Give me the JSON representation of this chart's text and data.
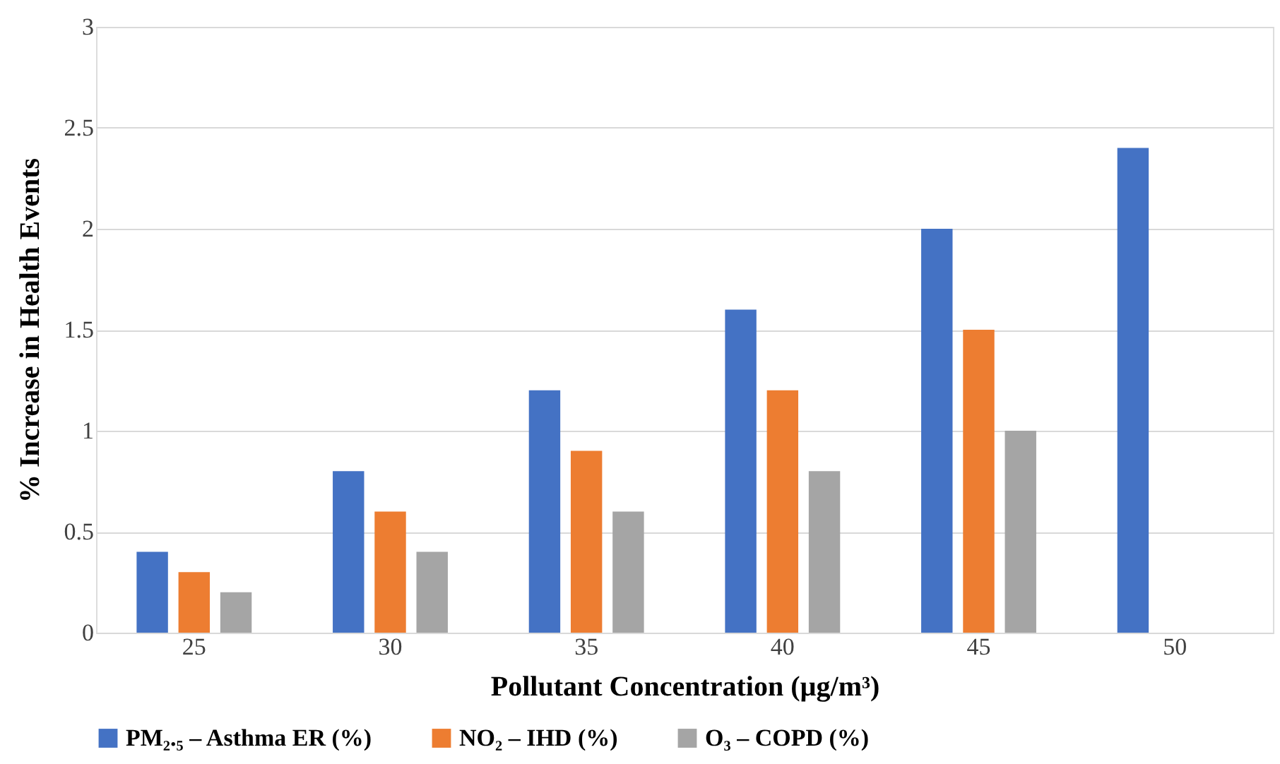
{
  "chart_data": {
    "type": "bar",
    "xlabel": "Pollutant Concentration (µg/m³)",
    "ylabel": "% Increase in Health Events",
    "categories": [
      "25",
      "30",
      "35",
      "40",
      "45",
      "50"
    ],
    "series": [
      {
        "name": "PM₂.₅ – Asthma ER (%)",
        "color": "#4472c4",
        "values": [
          0.4,
          0.8,
          1.2,
          1.6,
          2.0,
          2.4
        ]
      },
      {
        "name": "NO₂ – IHD (%)",
        "color": "#ed7d31",
        "values": [
          0.3,
          0.6,
          0.9,
          1.2,
          1.5,
          null
        ]
      },
      {
        "name": "O₃ – COPD (%)",
        "color": "#a5a5a5",
        "values": [
          0.2,
          0.4,
          0.6,
          0.8,
          1.0,
          null
        ]
      }
    ],
    "ylim": [
      0,
      3
    ],
    "yticks": [
      0,
      0.5,
      1,
      1.5,
      2,
      2.5,
      3
    ],
    "grid": "y",
    "legend": "bottom"
  }
}
